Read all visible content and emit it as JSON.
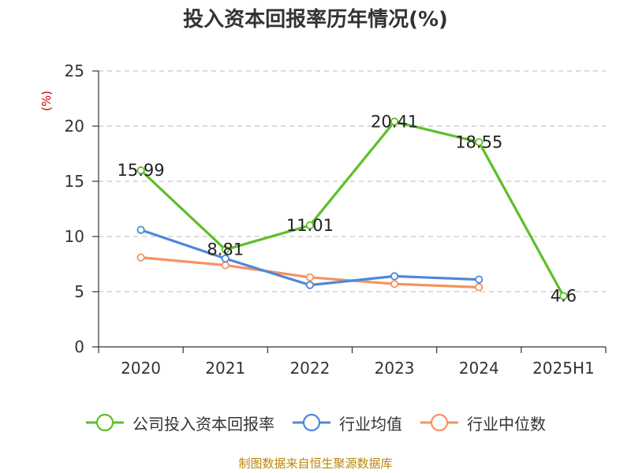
{
  "title": "投入资本回报率历年情况(%)",
  "y_unit": "(%)",
  "source": "制图数据来自恒生聚源数据库",
  "chart_data": {
    "type": "line",
    "categories": [
      "2020",
      "2021",
      "2022",
      "2023",
      "2024",
      "2025H1"
    ],
    "ylim": [
      0,
      25
    ],
    "yticks": [
      0,
      5,
      10,
      15,
      20,
      25
    ],
    "grid": true,
    "legend_position": "bottom",
    "series": [
      {
        "name": "公司投入资本回报率",
        "color": "#5cbf2a",
        "values": [
          15.99,
          8.81,
          11.01,
          20.41,
          18.55,
          4.6
        ],
        "labels": [
          "15.99",
          "8.81",
          "11.01",
          "20.41",
          "18.55",
          "4.6"
        ]
      },
      {
        "name": "行业均值",
        "color": "#4f87d9",
        "values": [
          10.6,
          8.0,
          5.6,
          6.4,
          6.1,
          null
        ]
      },
      {
        "name": "行业中位数",
        "color": "#f5935e",
        "values": [
          8.1,
          7.4,
          6.3,
          5.7,
          5.4,
          null
        ]
      }
    ]
  }
}
